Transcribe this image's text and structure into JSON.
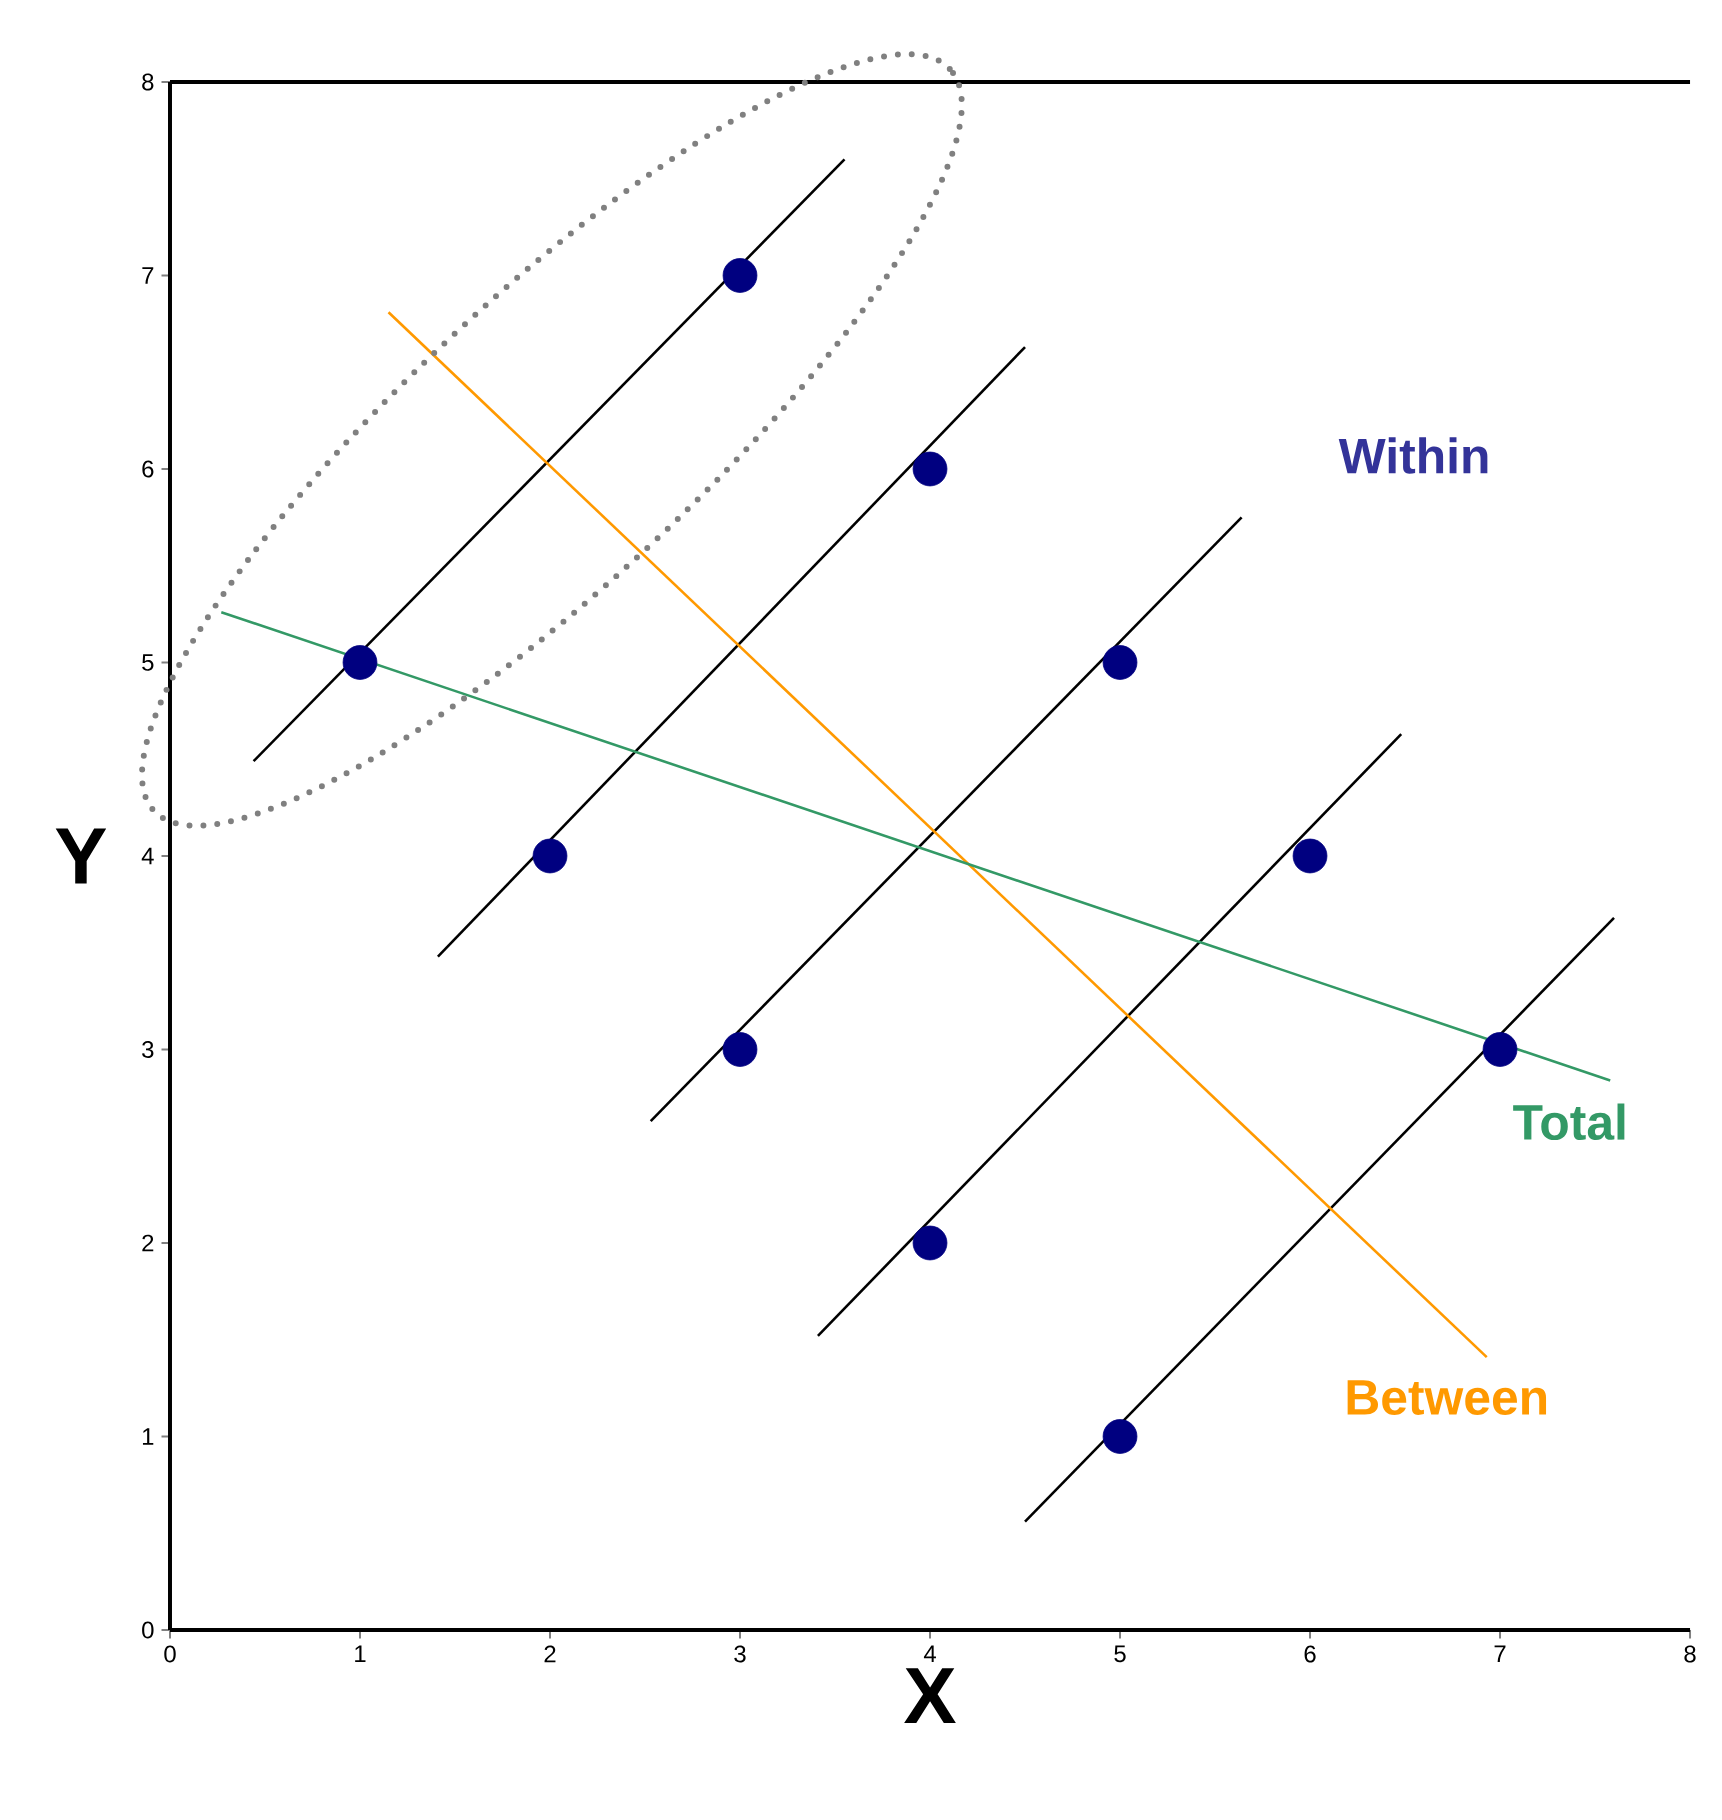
{
  "chart_data": {
    "type": "scatter",
    "xlabel": "X",
    "ylabel": "Y",
    "xlim": [
      0,
      8
    ],
    "ylim": [
      0,
      8
    ],
    "xticks": [
      0,
      1,
      2,
      3,
      4,
      5,
      6,
      7,
      8
    ],
    "yticks": [
      0,
      1,
      2,
      3,
      4,
      5,
      6,
      7,
      8
    ],
    "grid": false,
    "annotations": [
      "Within"
    ],
    "series": [
      {
        "type": "line",
        "marker": "none",
        "color": "#000000",
        "x": [
          0.44,
          3.55
        ],
        "values": [
          4.49,
          7.6
        ]
      },
      {
        "type": "line",
        "marker": "none",
        "color": "#000000",
        "x": [
          1.41,
          4.5
        ],
        "values": [
          3.48,
          6.63
        ]
      },
      {
        "type": "line",
        "marker": "none",
        "color": "#000000",
        "x": [
          2.53,
          5.64
        ],
        "values": [
          2.63,
          5.75
        ]
      },
      {
        "type": "line",
        "marker": "none",
        "color": "#000000",
        "x": [
          3.41,
          6.48
        ],
        "values": [
          1.52,
          4.63
        ]
      },
      {
        "type": "line",
        "marker": "none",
        "color": "#000000",
        "x": [
          4.5,
          7.6
        ],
        "values": [
          0.56,
          3.68
        ]
      },
      {
        "type": "line",
        "marker": "none",
        "name": "Between",
        "color": "#ff9900",
        "x": [
          1.15,
          6.93
        ],
        "values": [
          6.81,
          1.41
        ]
      },
      {
        "type": "line",
        "marker": "none",
        "name": "Total",
        "color": "#339966",
        "x": [
          0.27,
          7.58
        ],
        "values": [
          5.26,
          2.84
        ]
      },
      {
        "marker": "circle",
        "color": "#000080",
        "x": [
          1,
          3,
          2,
          4,
          3,
          5,
          4,
          6,
          5,
          7
        ],
        "values": [
          5,
          7,
          4,
          6,
          3,
          5,
          2,
          4,
          1,
          3
        ]
      }
    ]
  }
}
